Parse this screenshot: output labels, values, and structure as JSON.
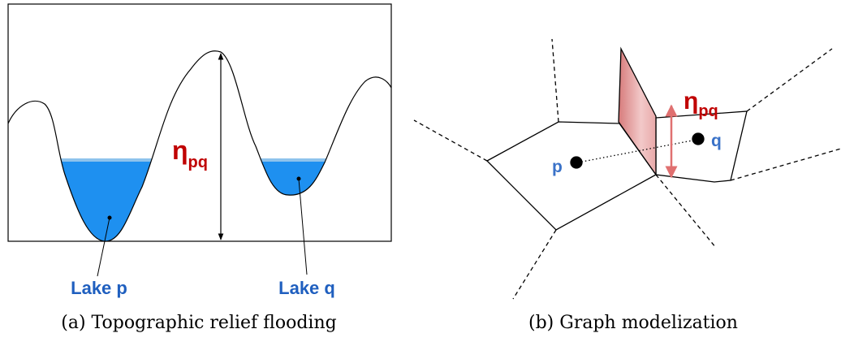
{
  "panel_a": {
    "eta": {
      "symbol": "η",
      "subscript": "pq"
    },
    "lake_p": "Lake p",
    "lake_q": "Lake q",
    "caption": "(a) Topographic relief flooding"
  },
  "panel_b": {
    "eta": {
      "symbol": "η",
      "subscript": "pq"
    },
    "point_p": "p",
    "point_q": "q",
    "caption": "(b) Graph modelization"
  }
}
